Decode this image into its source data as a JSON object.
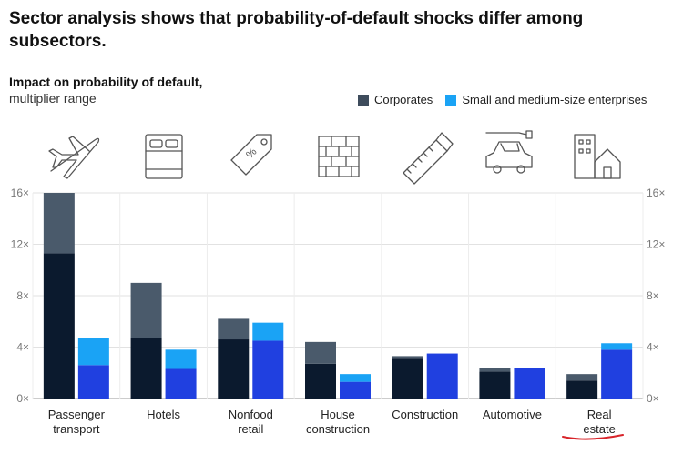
{
  "chart_data": {
    "type": "bar",
    "title": "Sector analysis shows that probability-of-default shocks differ among subsectors.",
    "subtitle_bold": "Impact on probability of default,",
    "subtitle_light": "multiplier range",
    "y_ticks": [
      "0×",
      "4×",
      "8×",
      "12×",
      "16×"
    ],
    "y_tick_values": [
      0,
      4,
      8,
      12,
      16
    ],
    "ylim": [
      0,
      16
    ],
    "grid": true,
    "legend_position": "top-right",
    "legend": [
      "Corporates",
      "Small and medium-size enterprises"
    ],
    "categories": [
      {
        "line1": "Passenger",
        "line2": "transport",
        "icon": "airplane-icon"
      },
      {
        "line1": "Hotels",
        "line2": "",
        "icon": "bed-icon"
      },
      {
        "line1": "Nonfood",
        "line2": "retail",
        "icon": "price-tag-icon"
      },
      {
        "line1": "House",
        "line2": "construction",
        "icon": "brick-wall-icon"
      },
      {
        "line1": "Construction",
        "line2": "",
        "icon": "saw-icon"
      },
      {
        "line1": "Automotive",
        "line2": "",
        "icon": "electric-car-icon"
      },
      {
        "line1": "Real",
        "line2": "estate",
        "icon": "buildings-icon"
      }
    ],
    "series": [
      {
        "name": "Corporates",
        "ranges": [
          [
            11.3,
            16.0
          ],
          [
            4.7,
            9.0
          ],
          [
            4.6,
            6.2
          ],
          [
            2.7,
            4.4
          ],
          [
            3.1,
            3.3
          ],
          [
            2.1,
            2.4
          ],
          [
            1.4,
            1.9
          ]
        ],
        "color_low": "#0b1a2e",
        "color_high": "#4a5a6b"
      },
      {
        "name": "Small and medium-size enterprises",
        "ranges": [
          [
            2.6,
            4.7
          ],
          [
            2.3,
            3.8
          ],
          [
            4.5,
            5.9
          ],
          [
            1.3,
            1.9
          ],
          [
            3.5,
            3.5
          ],
          [
            2.4,
            2.4
          ],
          [
            3.8,
            4.3
          ]
        ],
        "color_low": "#2040e0",
        "color_high": "#1aa3f5"
      }
    ]
  }
}
